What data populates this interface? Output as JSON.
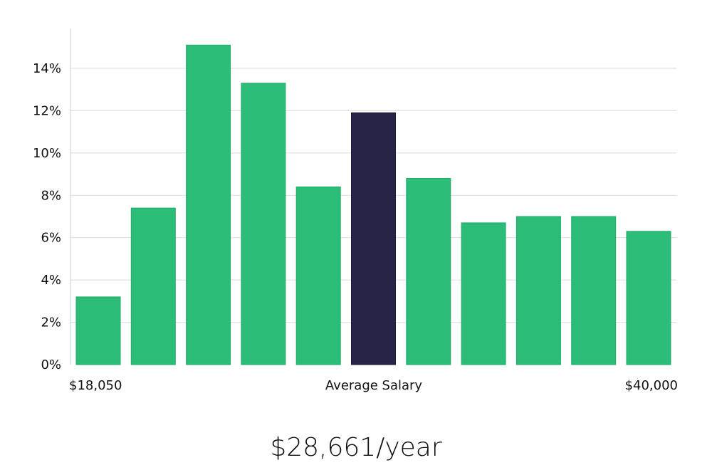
{
  "chart_data": {
    "type": "bar",
    "title": "",
    "xlabel": "Average Salary",
    "ylabel": "",
    "ylim": [
      0,
      16
    ],
    "y_ticks": [
      0,
      2,
      4,
      6,
      8,
      10,
      12,
      14
    ],
    "y_tick_labels": [
      "0%",
      "2%",
      "4%",
      "6%",
      "8%",
      "10%",
      "12%",
      "14%"
    ],
    "x_edge_labels": {
      "left": "$18,050",
      "center": "Average Salary",
      "right": "$40,000"
    },
    "values": [
      3.2,
      7.4,
      15.1,
      13.3,
      8.4,
      11.9,
      8.8,
      6.7,
      7.0,
      7.0,
      6.3
    ],
    "highlight_index": 5,
    "colors": {
      "bar": "#2bbd77",
      "bar_edge": "#22ad69",
      "highlight": "#282446",
      "grid": "#dddddd",
      "axis": "#cccccc"
    },
    "grid": true,
    "legend": "none"
  },
  "summary": {
    "salary": "$28,661/year"
  }
}
